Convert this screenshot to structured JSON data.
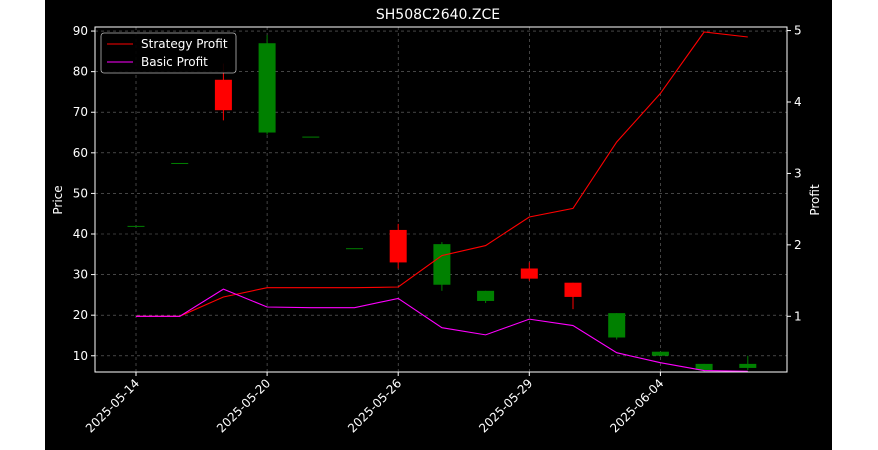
{
  "chart_data": {
    "type": "candlestick",
    "title": "SH508C2640.ZCE",
    "ylabel": "Price",
    "y2label": "Profit",
    "ylim": [
      6,
      91
    ],
    "y2lim": [
      0.22,
      5.05
    ],
    "yticks": [
      10,
      20,
      30,
      40,
      50,
      60,
      70,
      80,
      90
    ],
    "y2ticks": [
      1,
      2,
      3,
      4,
      5
    ],
    "xticks": [
      {
        "i": 0,
        "label": "2025-05-14"
      },
      {
        "i": 3,
        "label": "2025-05-20"
      },
      {
        "i": 6,
        "label": "2025-05-26"
      },
      {
        "i": 9,
        "label": "2025-05-29"
      },
      {
        "i": 12,
        "label": "2025-06-04"
      }
    ],
    "grid": true,
    "legend_position": "top-left",
    "colors": {
      "up": "#008000",
      "down": "#ff0000",
      "strategy": "#ff0000",
      "basic": "#ff00ff"
    },
    "candles": [
      {
        "i": 0,
        "open": 42.0,
        "high": 42.0,
        "low": 42.0,
        "close": 42.0
      },
      {
        "i": 1,
        "open": 57.5,
        "high": 57.5,
        "low": 57.5,
        "close": 57.5
      },
      {
        "i": 2,
        "open": 78.0,
        "high": 82.0,
        "low": 68.0,
        "close": 70.5
      },
      {
        "i": 3,
        "open": 65.0,
        "high": 89.0,
        "low": 64.5,
        "close": 87.0
      },
      {
        "i": 4,
        "open": 64.0,
        "high": 64.0,
        "low": 64.0,
        "close": 64.0
      },
      {
        "i": 5,
        "open": 36.5,
        "high": 36.5,
        "low": 36.5,
        "close": 36.5
      },
      {
        "i": 6,
        "open": 41.0,
        "high": 42.5,
        "low": 31.5,
        "close": 33.0
      },
      {
        "i": 7,
        "open": 27.5,
        "high": 38.0,
        "low": 26.0,
        "close": 37.5
      },
      {
        "i": 8,
        "open": 23.5,
        "high": 26.0,
        "low": 23.0,
        "close": 26.0
      },
      {
        "i": 9,
        "open": 31.5,
        "high": 33.0,
        "low": 28.5,
        "close": 29.0
      },
      {
        "i": 10,
        "open": 28.0,
        "high": 28.0,
        "low": 21.5,
        "close": 24.5
      },
      {
        "i": 11,
        "open": 14.5,
        "high": 20.5,
        "low": 14.0,
        "close": 20.5
      },
      {
        "i": 12,
        "open": 10.0,
        "high": 11.0,
        "low": 10.0,
        "close": 11.0
      },
      {
        "i": 13,
        "open": 6.5,
        "high": 8.0,
        "low": 6.0,
        "close": 8.0
      },
      {
        "i": 14,
        "open": 7.0,
        "high": 10.0,
        "low": 6.5,
        "close": 8.0
      }
    ],
    "series": [
      {
        "name": "Strategy Profit",
        "axis": "right",
        "x": [
          0,
          1,
          2,
          3,
          4,
          5,
          6,
          7,
          8,
          9,
          10,
          11,
          12,
          13,
          14
        ],
        "values": [
          1.0,
          1.0,
          1.27,
          1.4,
          1.4,
          1.4,
          1.41,
          1.85,
          1.99,
          2.39,
          2.51,
          3.44,
          4.12,
          4.98,
          4.91
        ]
      },
      {
        "name": "Basic Profit",
        "axis": "right",
        "x": [
          0,
          1,
          2,
          3,
          4,
          5,
          6,
          7,
          8,
          9,
          10,
          11,
          12,
          13,
          14
        ],
        "values": [
          1.0,
          1.0,
          1.38,
          1.13,
          1.12,
          1.12,
          1.25,
          0.84,
          0.74,
          0.96,
          0.87,
          0.49,
          0.35,
          0.24,
          0.23
        ]
      }
    ]
  }
}
